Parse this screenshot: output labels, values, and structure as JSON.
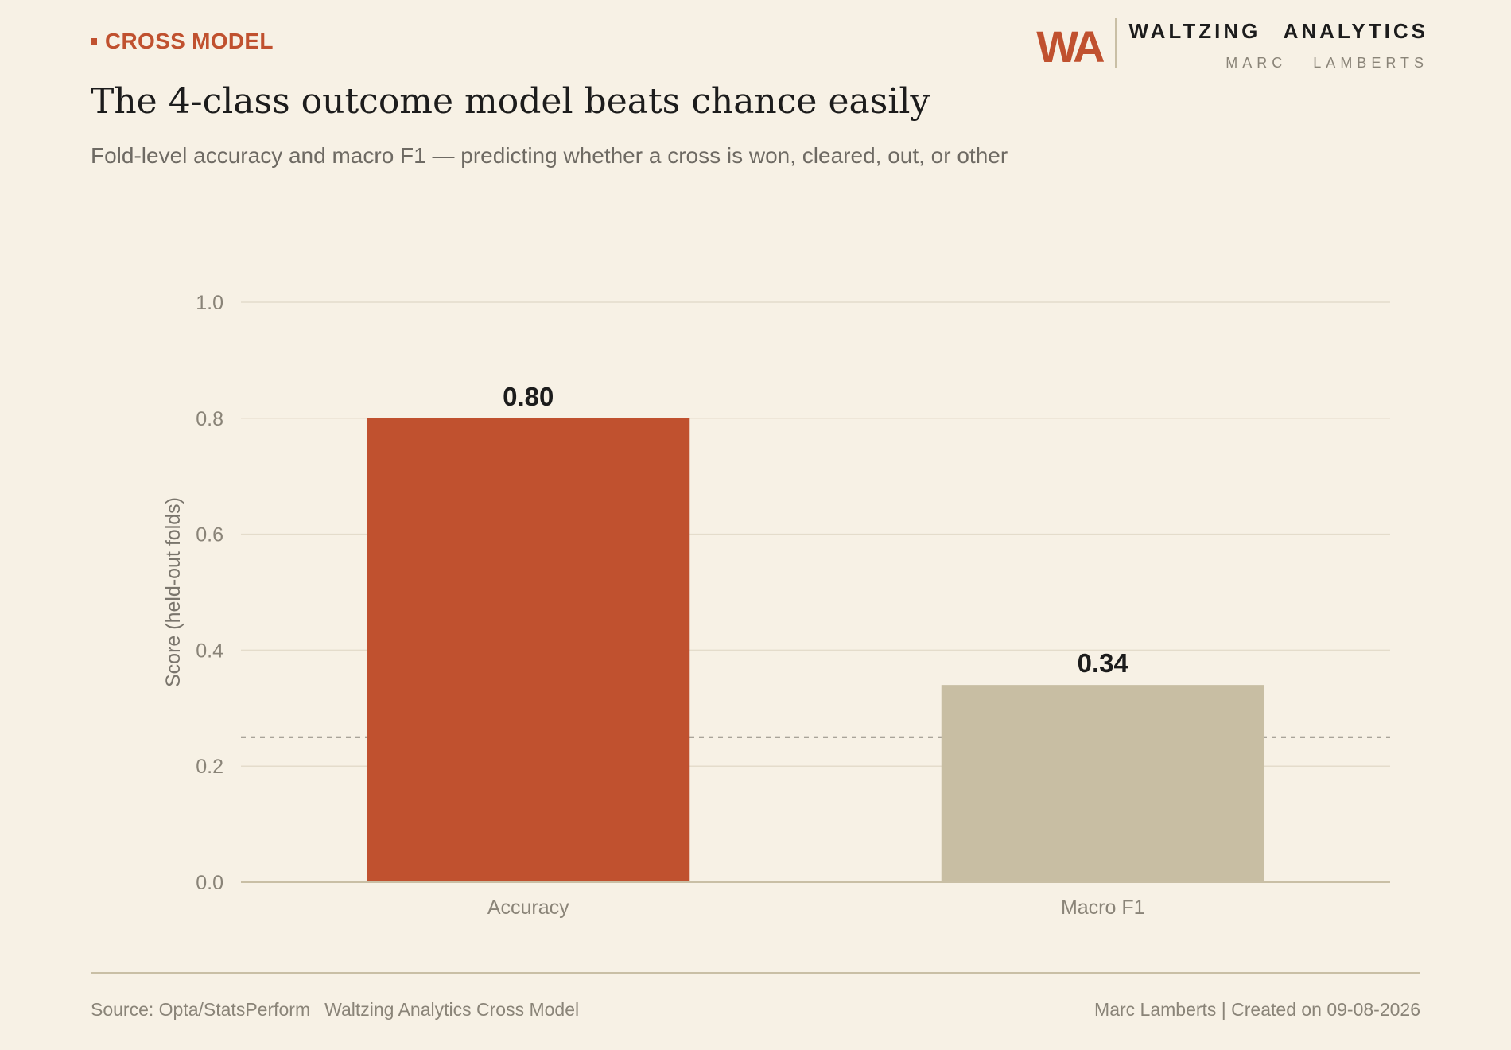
{
  "header": {
    "kicker": "CROSS MODEL",
    "title": "The 4-class outcome model beats chance easily",
    "subtitle": "Fold-level accuracy and macro F1 — predicting whether a cross is won, cleared, out, or other"
  },
  "brand": {
    "logo": "WA",
    "name": "WALTZING ANALYTICS",
    "author": "MARC LAMBERTS"
  },
  "chart_data": {
    "type": "bar",
    "title": "The 4-class outcome model beats chance easily",
    "subtitle": "Fold-level accuracy and macro F1 — predicting whether a cross is won, cleared, out, or other",
    "categories": [
      "Accuracy",
      "Macro F1"
    ],
    "values": [
      0.8,
      0.34
    ],
    "value_labels": [
      "0.80",
      "0.34"
    ],
    "bar_colors": [
      "#c0512f",
      "#c8bea3"
    ],
    "ylabel": "Score (held-out folds)",
    "xlabel": "",
    "ylim": [
      0,
      1
    ],
    "yticks": [
      0.0,
      0.2,
      0.4,
      0.6,
      0.8,
      1.0
    ],
    "ytick_labels": [
      "0.0",
      "0.2",
      "0.4",
      "0.6",
      "0.8",
      "1.0"
    ],
    "reference_line": {
      "y": 0.25,
      "style": "dashed"
    },
    "grid": true,
    "legend": "none"
  },
  "colors": {
    "accent": "#c0512f",
    "background": "#f7f1e5",
    "muted_bar": "#c8bea3",
    "grid": "#e4dccb"
  },
  "footer": {
    "source": "Source: Opta/StatsPerform",
    "project": "Waltzing Analytics Cross Model",
    "credit": "Marc Lamberts | Created on 09-08-2026"
  }
}
